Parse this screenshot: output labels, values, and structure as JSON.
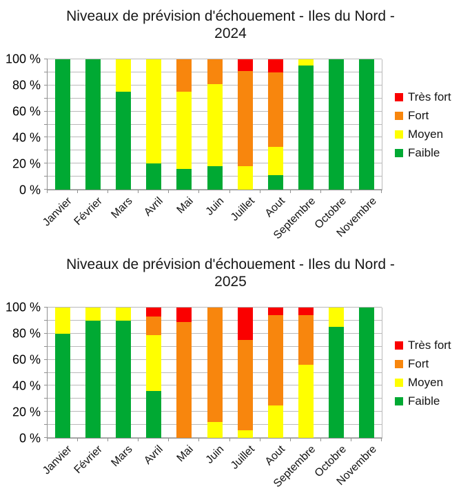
{
  "page": {
    "background": "#ffffff"
  },
  "chart_data": [
    {
      "type": "bar",
      "stacked": true,
      "units": "%",
      "title": "Niveaux de prévision d'échouement - Iles du Nord - 2024",
      "title_line1": "Niveaux de prévision d'échouement - Iles du Nord -",
      "title_line2": "2024",
      "categories": [
        "Janvier",
        "Février",
        "Mars",
        "Avril",
        "Mai",
        "Juin",
        "Juillet",
        "Aout",
        "Septembre",
        "Octobre",
        "Novembre"
      ],
      "series": [
        {
          "name": "Très fort",
          "color": "#FA0000",
          "values": [
            0,
            0,
            0,
            0,
            0,
            0,
            9,
            10,
            0,
            0,
            0
          ]
        },
        {
          "name": "Fort",
          "color": "#F8860D",
          "values": [
            0,
            0,
            0,
            0,
            25,
            19,
            73,
            57,
            0,
            0,
            0
          ]
        },
        {
          "name": "Moyen",
          "color": "#FFFF00",
          "values": [
            0,
            0,
            25,
            80,
            59,
            63,
            18,
            22,
            5,
            0,
            0
          ]
        },
        {
          "name": "Faible",
          "color": "#00A933",
          "values": [
            100,
            100,
            75,
            20,
            16,
            18,
            0,
            11,
            95,
            100,
            100
          ]
        }
      ],
      "y_ticks": [
        "100 %",
        "80 %",
        "60 %",
        "40 %",
        "20 %",
        "0 %"
      ],
      "ylim": [
        0,
        100
      ],
      "grid_step": 10,
      "grid": true,
      "legend_position": "right"
    },
    {
      "type": "bar",
      "stacked": true,
      "units": "%",
      "title": "Niveaux de prévision d'échouement - Iles du Nord - 2025",
      "title_line1": "Niveaux de prévision d'échouement - Iles du Nord -",
      "title_line2": "2025",
      "categories": [
        "Janvier",
        "Février",
        "Mars",
        "Avril",
        "Mai",
        "Juin",
        "Juillet",
        "Aout",
        "Septembre",
        "Octobre",
        "Novembre"
      ],
      "series": [
        {
          "name": "Très fort",
          "color": "#FA0000",
          "values": [
            0,
            0,
            0,
            7,
            11,
            0,
            25,
            6,
            6,
            0,
            0
          ]
        },
        {
          "name": "Fort",
          "color": "#F8860D",
          "values": [
            0,
            0,
            0,
            14,
            89,
            88,
            69,
            69,
            38,
            0,
            0
          ]
        },
        {
          "name": "Moyen",
          "color": "#FFFF00",
          "values": [
            20,
            10,
            10,
            43,
            0,
            12,
            6,
            25,
            56,
            15,
            0
          ]
        },
        {
          "name": "Faible",
          "color": "#00A933",
          "values": [
            80,
            90,
            90,
            36,
            0,
            0,
            0,
            0,
            0,
            85,
            100
          ]
        }
      ],
      "y_ticks": [
        "100 %",
        "80 %",
        "60 %",
        "40 %",
        "20 %",
        "0 %"
      ],
      "ylim": [
        0,
        100
      ],
      "grid_step": 10,
      "grid": true,
      "legend_position": "right"
    }
  ]
}
